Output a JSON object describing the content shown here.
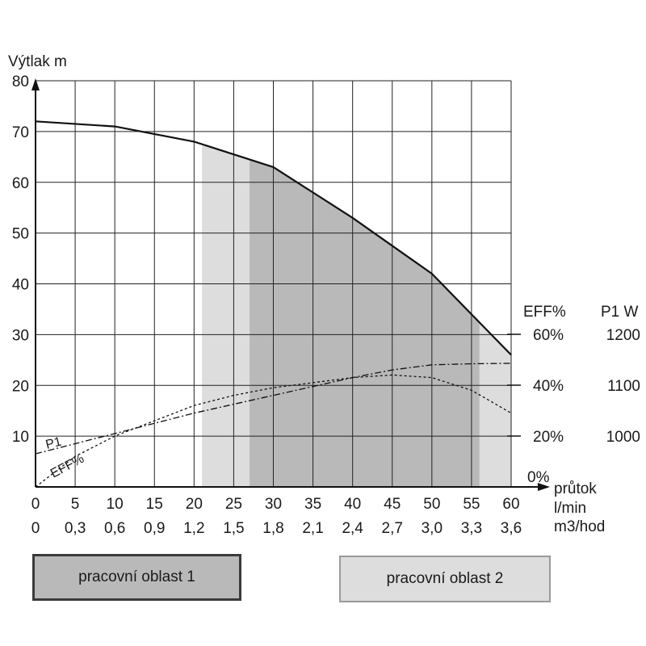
{
  "chart_data": {
    "type": "line",
    "ylabel": "Výtlak m",
    "xlabel": "průtok",
    "x_units": [
      "l/min",
      "m3/hod"
    ],
    "x": [
      0,
      5,
      10,
      15,
      20,
      25,
      30,
      35,
      40,
      45,
      50,
      55,
      60
    ],
    "x_ticks_lmin": [
      "0",
      "5",
      "10",
      "15",
      "20",
      "25",
      "30",
      "35",
      "40",
      "45",
      "50",
      "55",
      "60"
    ],
    "x_ticks_m3h": [
      "0",
      "0,3",
      "0,6",
      "0,9",
      "1,2",
      "1,5",
      "1,8",
      "2,1",
      "2,4",
      "2,7",
      "3,0",
      "3,3",
      "3,6"
    ],
    "xlim": [
      0,
      60
    ],
    "ylim": [
      0,
      80
    ],
    "y_ticks": [
      "10",
      "20",
      "30",
      "40",
      "50",
      "60",
      "70",
      "80"
    ],
    "grid": true,
    "right_axis_titles": {
      "eff": "EFF%",
      "p1": "P1 W"
    },
    "eff_ticks": [
      {
        "label": "0%",
        "value": 0
      },
      {
        "label": "20%",
        "value": 20
      },
      {
        "label": "40%",
        "value": 40
      },
      {
        "label": "60%",
        "value": 60
      }
    ],
    "p1_ticks": [
      {
        "label": "1000",
        "value": 1000
      },
      {
        "label": "1100",
        "value": 1100
      },
      {
        "label": "1200",
        "value": 1200
      }
    ],
    "regions": [
      {
        "name": "pracovní oblast 2",
        "x_range": [
          21,
          60
        ],
        "color": "#dddddd"
      },
      {
        "name": "pracovní oblast 1",
        "x_range": [
          27,
          56
        ],
        "color": "#b9b9b9"
      }
    ],
    "series": [
      {
        "axis": "head_m",
        "style": "solid",
        "x": [
          0,
          10,
          20,
          30,
          40,
          50,
          60
        ],
        "y": [
          72,
          71,
          68,
          63,
          53,
          42,
          26
        ]
      },
      {
        "name": "P1",
        "axis": "P1_W",
        "style": "dashdot",
        "x": [
          0,
          10,
          20,
          30,
          40,
          45,
          50,
          55,
          60
        ],
        "y": [
          965,
          1005,
          1045,
          1080,
          1115,
          1130,
          1140,
          1142,
          1143
        ]
      },
      {
        "name": "EFF%",
        "axis": "EFF_pct",
        "style": "dotted",
        "x": [
          0,
          5,
          10,
          15,
          20,
          25,
          30,
          35,
          40,
          45,
          50,
          55,
          60
        ],
        "y": [
          0,
          12,
          20,
          26,
          32,
          36,
          39,
          41,
          43,
          44,
          43,
          38,
          29
        ]
      }
    ],
    "legend": [
      {
        "label": "pracovní oblast 1",
        "color": "#b9b9b9"
      },
      {
        "label": "pracovní oblast 2",
        "color": "#dddddd"
      }
    ]
  }
}
